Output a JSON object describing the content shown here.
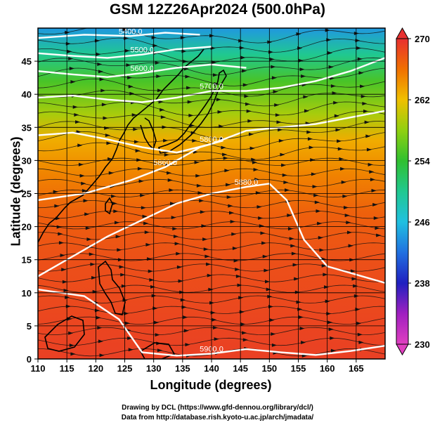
{
  "title": "GSM 12Z26Apr2024 (500.0hPa)",
  "xlabel": "Longitude (degrees)",
  "ylabel": "Latitude  (degrees)",
  "credit_line1": "Drawing by DCL (https://www.gfd-dennou.org/library/dcl/)",
  "credit_line2": "Data from http://database.rish.kyoto-u.ac.jp/arch/jmadata/",
  "chart_data": {
    "type": "heatmap",
    "variable": "500hPa temperature (K) with geopotential height contours and streamlines",
    "xlim": [
      110,
      170
    ],
    "ylim": [
      0,
      50
    ],
    "x_ticks": [
      110,
      115,
      120,
      125,
      130,
      135,
      140,
      145,
      150,
      155,
      160,
      165
    ],
    "y_ticks": [
      0,
      5,
      10,
      15,
      20,
      25,
      30,
      35,
      40,
      45
    ],
    "colorbar": {
      "min": 230,
      "max": 270,
      "tick_values": [
        230,
        238,
        246,
        254,
        262,
        270
      ],
      "stops": [
        {
          "value": 230,
          "color": "#e040c0"
        },
        {
          "value": 234,
          "color": "#a020c0"
        },
        {
          "value": 238,
          "color": "#2020c0"
        },
        {
          "value": 242,
          "color": "#2070e0"
        },
        {
          "value": 246,
          "color": "#20c0e0"
        },
        {
          "value": 250,
          "color": "#20c890"
        },
        {
          "value": 254,
          "color": "#30c030"
        },
        {
          "value": 258,
          "color": "#90d010"
        },
        {
          "value": 262,
          "color": "#f0c000"
        },
        {
          "value": 266,
          "color": "#f07000"
        },
        {
          "value": 270,
          "color": "#e83030"
        }
      ]
    },
    "temperature_by_latitude": [
      {
        "lat": 50,
        "temp": 244
      },
      {
        "lat": 46,
        "temp": 250
      },
      {
        "lat": 42,
        "temp": 255
      },
      {
        "lat": 37,
        "temp": 259
      },
      {
        "lat": 33,
        "temp": 263
      },
      {
        "lat": 28,
        "temp": 265
      },
      {
        "lat": 22,
        "temp": 267
      },
      {
        "lat": 15,
        "temp": 268
      },
      {
        "lat": 0,
        "temp": 269
      }
    ],
    "height_contours": [
      {
        "label": "5400.0",
        "points": [
          [
            110,
            48.5
          ],
          [
            118,
            49
          ],
          [
            126,
            48.8
          ],
          [
            132,
            49.3
          ],
          [
            138,
            49
          ]
        ]
      },
      {
        "label": "5500.0",
        "points": [
          [
            110,
            46.2
          ],
          [
            116,
            45.8
          ],
          [
            122,
            45.5
          ],
          [
            128,
            46
          ],
          [
            134,
            46.8
          ],
          [
            140,
            47.2
          ]
        ]
      },
      {
        "label": "5600.0",
        "points": [
          [
            110,
            43.5
          ],
          [
            116,
            43
          ],
          [
            122,
            42.6
          ],
          [
            128,
            43.2
          ],
          [
            134,
            44
          ],
          [
            140,
            44.5
          ],
          [
            146,
            44
          ]
        ]
      },
      {
        "label": "5700.0",
        "points": [
          [
            110,
            39.5
          ],
          [
            116,
            39.8
          ],
          [
            122,
            39.2
          ],
          [
            128,
            38.8
          ],
          [
            134,
            39.5
          ],
          [
            140,
            40.5
          ],
          [
            146,
            40.5
          ],
          [
            152,
            41
          ],
          [
            158,
            42
          ],
          [
            164,
            43.5
          ],
          [
            170,
            45.5
          ]
        ]
      },
      {
        "label": "5800.0",
        "points": [
          [
            110,
            33.8
          ],
          [
            116,
            34.2
          ],
          [
            122,
            33.2
          ],
          [
            128,
            32
          ],
          [
            134,
            31.2
          ],
          [
            140,
            32.5
          ],
          [
            146,
            34.5
          ],
          [
            152,
            35
          ],
          [
            158,
            35.5
          ],
          [
            164,
            36.5
          ],
          [
            170,
            37.5
          ]
        ]
      },
      {
        "label": "5860.0",
        "points": [
          [
            110,
            24
          ],
          [
            118,
            25
          ],
          [
            126,
            27
          ],
          [
            132,
            29
          ],
          [
            138,
            32
          ],
          [
            142,
            33
          ]
        ]
      },
      {
        "label": "5880.0",
        "points": [
          [
            110,
            12.5
          ],
          [
            116,
            15.5
          ],
          [
            122,
            18.5
          ],
          [
            128,
            21
          ],
          [
            134,
            23.5
          ],
          [
            140,
            25
          ],
          [
            146,
            26
          ],
          [
            150,
            26.5
          ],
          [
            153,
            24
          ],
          [
            156,
            18
          ],
          [
            160,
            14
          ],
          [
            170,
            11.5
          ]
        ]
      },
      {
        "label": "5900.0",
        "points": [
          [
            110,
            10.5
          ],
          [
            118,
            9.5
          ],
          [
            124,
            6
          ],
          [
            128,
            1
          ],
          [
            134,
            0.5
          ],
          [
            140,
            0.8
          ],
          [
            146,
            1.5
          ],
          [
            152,
            1
          ],
          [
            158,
            0.6
          ],
          [
            164,
            1.2
          ],
          [
            170,
            2
          ]
        ]
      }
    ]
  }
}
